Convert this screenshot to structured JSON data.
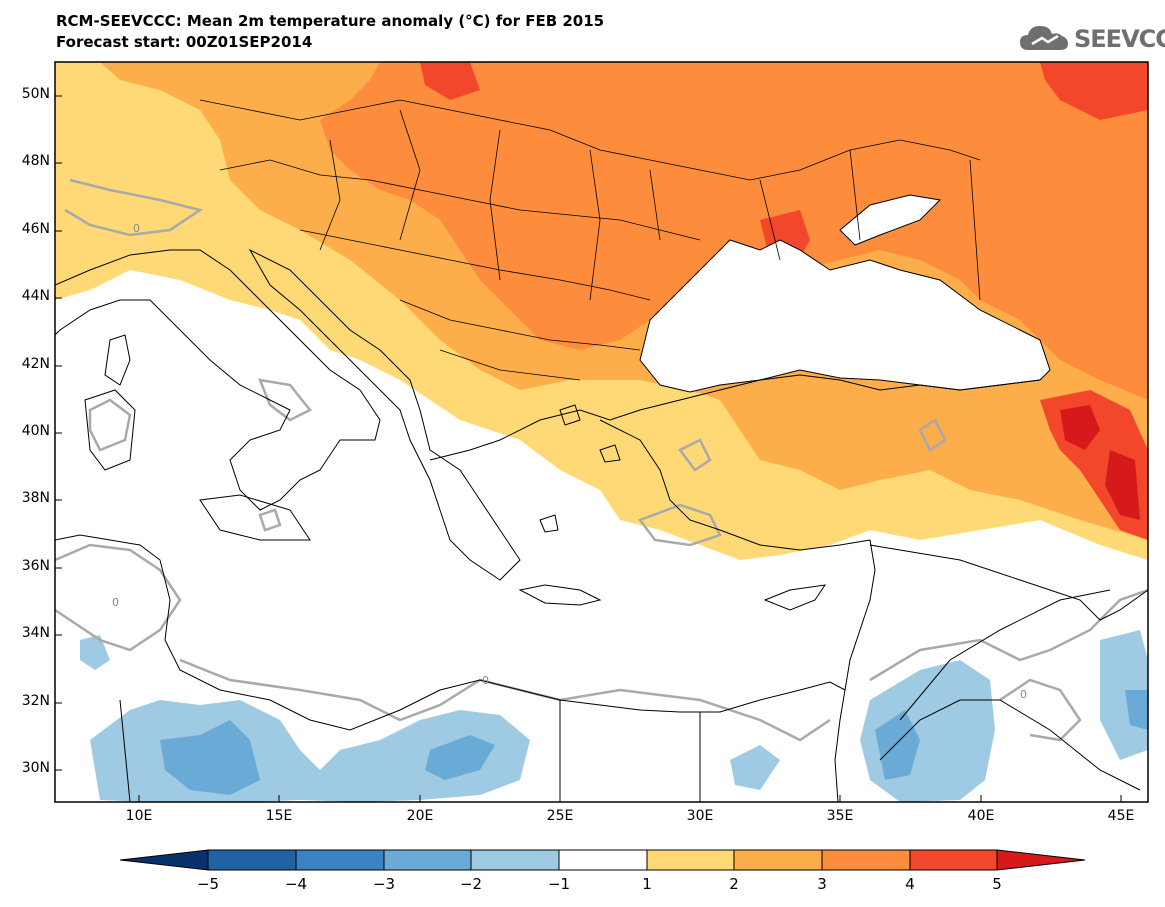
{
  "header": {
    "title": "RCM-SEEVCCC: Mean 2m temperature anomaly (°C) for FEB 2015",
    "subtitle": "Forecast start: 00Z01SEP2014"
  },
  "logo": {
    "text": "SEEVCCC",
    "icon": "cloud-icon"
  },
  "map": {
    "variable": "Mean 2m temperature anomaly",
    "units": "°C",
    "contour_label": "0",
    "lat_labels": [
      "50N",
      "48N",
      "46N",
      "44N",
      "42N",
      "40N",
      "38N",
      "36N",
      "34N",
      "32N",
      "30N"
    ],
    "lon_labels": [
      "10E",
      "15E",
      "20E",
      "25E",
      "30E",
      "35E",
      "40E",
      "45E"
    ],
    "lat_range": [
      29,
      51
    ],
    "lon_range": [
      7,
      46
    ]
  },
  "colorbar": {
    "tick_labels": [
      "−5",
      "−4",
      "−3",
      "−2",
      "−1",
      "1",
      "2",
      "3",
      "4",
      "5"
    ],
    "colors": [
      "#08306b",
      "#1f63a6",
      "#3d82c4",
      "#6aaad6",
      "#9fcae3",
      "#ffffff",
      "#fed976",
      "#fdae4b",
      "#fd8d3c",
      "#f3472b",
      "#d7191c"
    ]
  },
  "colors": {
    "land_outline": "#000000",
    "zero_contour": "#a9a9a9"
  }
}
